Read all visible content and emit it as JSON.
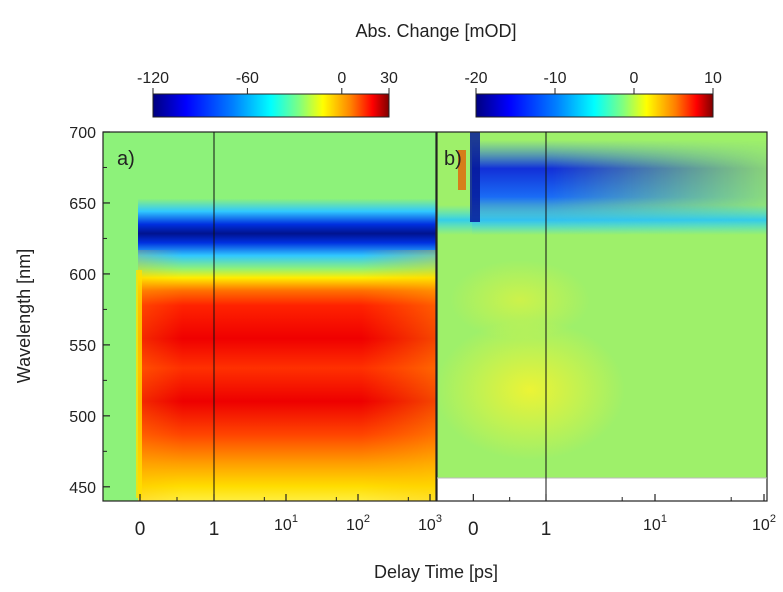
{
  "chart_data": {
    "type": "heatmap",
    "x_axis_title": "Delay Time [ps]",
    "y_axis_title": "Wavelength [nm]",
    "colorbar_title": "Abs. Change [mOD]",
    "colormap": [
      "#00007f",
      "#0000ff",
      "#0080ff",
      "#00ffff",
      "#80ff80",
      "#ffff00",
      "#ff8000",
      "#ff0000",
      "#7f0000"
    ],
    "ylim": [
      440,
      700
    ],
    "y_ticks": [
      "450",
      "500",
      "550",
      "600",
      "650",
      "700"
    ],
    "x_scale": "linear up to 1 ps, logarithmic above 1 ps",
    "panels": [
      {
        "label": "a)",
        "colorbar_ticks": [
          "-120",
          "-60",
          "0",
          "30"
        ],
        "colorbar_range": [
          -120,
          30
        ],
        "x_ticks": [
          {
            "base": "0",
            "exp": ""
          },
          {
            "base": "1",
            "exp": ""
          },
          {
            "base": "10",
            "exp": "1"
          },
          {
            "base": "10",
            "exp": "2"
          },
          {
            "base": "10",
            "exp": "3"
          }
        ],
        "xlim": [
          -0.5,
          1000
        ],
        "features": [
          {
            "kind": "bleach band (negative)",
            "wavelength_nm": 647,
            "value_mOD": -120,
            "delay_ps": [
              0,
              1000
            ]
          },
          {
            "kind": "positive absorption",
            "wavelength_nm": [
              440,
              610
            ],
            "peaks_nm": [
              500,
              575
            ],
            "value_mOD": 30,
            "delay_ps": [
              0,
              1000
            ]
          }
        ]
      },
      {
        "label": "b)",
        "colorbar_ticks": [
          "-20",
          "-10",
          "0",
          "10"
        ],
        "colorbar_range": [
          -20,
          10
        ],
        "x_ticks": [
          {
            "base": "0",
            "exp": ""
          },
          {
            "base": "1",
            "exp": ""
          },
          {
            "base": "10",
            "exp": "1"
          },
          {
            "base": "10",
            "exp": "2"
          }
        ],
        "xlim": [
          -0.5,
          100
        ],
        "data_wavelength_min_nm": 458,
        "features": [
          {
            "kind": "bleach band (negative)",
            "wavelength_nm": [
              640,
              690
            ],
            "value_mOD": -20,
            "delay_ps": [
              0,
              100
            ]
          },
          {
            "kind": "weak positive absorption",
            "wavelength_nm": [
              470,
              560
            ],
            "value_mOD": 3,
            "delay_ps": [
              0,
              10
            ]
          }
        ]
      }
    ]
  }
}
